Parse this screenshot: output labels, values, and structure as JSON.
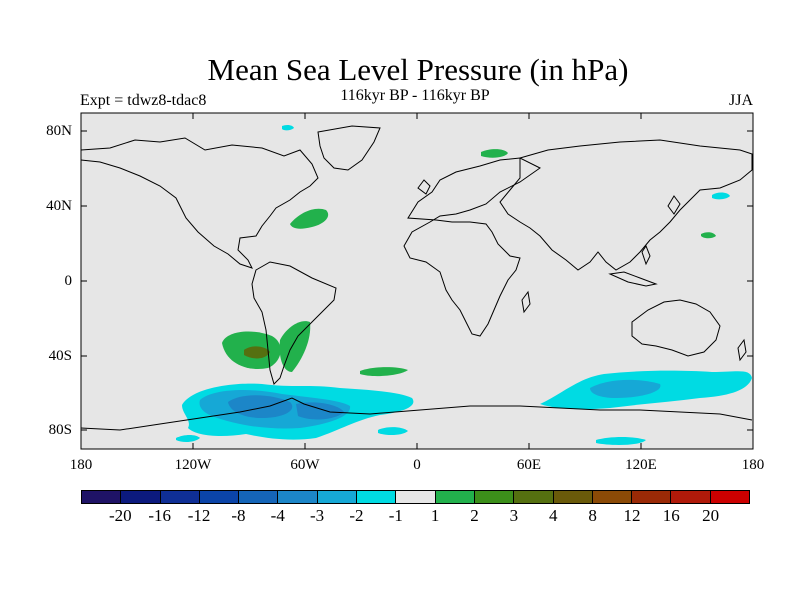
{
  "header": {
    "title": "Mean Sea Level Pressure (in hPa)",
    "experiment": "Expt = tdwz8-tdac8",
    "period": "116kyr BP - 116kyr BP",
    "season": "JJA"
  },
  "axes": {
    "lat_labels": [
      "80N",
      "40N",
      "0",
      "40S",
      "80S"
    ],
    "lon_labels": [
      "180",
      "120W",
      "60W",
      "0",
      "60E",
      "120E",
      "180"
    ]
  },
  "colorbar": {
    "colors": [
      "#1f1366",
      "#0c1a7e",
      "#0f2f96",
      "#0b44a8",
      "#1565b8",
      "#1c86c8",
      "#16a8d6",
      "#00dbe3",
      "#e6e6e6",
      "#22b14c",
      "#3c8f1a",
      "#557010",
      "#6a5a0a",
      "#8b4a06",
      "#9a2a06",
      "#b01a0a",
      "#cc0000"
    ],
    "labels": [
      "-20",
      "-16",
      "-12",
      "-8",
      "-4",
      "-3",
      "-2",
      "-1",
      "1",
      "2",
      "3",
      "4",
      "8",
      "12",
      "16",
      "20"
    ]
  },
  "map": {
    "ocean_color": "#e6e6e6",
    "land_outline_color": "#000000",
    "anomaly_regions": [
      {
        "name": "north-atlantic-positive",
        "color": "#22b14c"
      },
      {
        "name": "scandinavia-positive",
        "color": "#22b14c"
      },
      {
        "name": "south-pacific-positive",
        "color": "#22b14c"
      },
      {
        "name": "south-pacific-positive-core",
        "color": "#557010"
      },
      {
        "name": "south-atlantic-positive",
        "color": "#22b14c"
      },
      {
        "name": "amundsen-negative",
        "color": "#00dbe3"
      },
      {
        "name": "amundsen-negative-inner",
        "color": "#16a8d6"
      },
      {
        "name": "amundsen-negative-core",
        "color": "#1c86c8"
      },
      {
        "name": "south-indian-negative",
        "color": "#00dbe3"
      },
      {
        "name": "south-indian-negative-core",
        "color": "#16a8d6"
      }
    ]
  }
}
